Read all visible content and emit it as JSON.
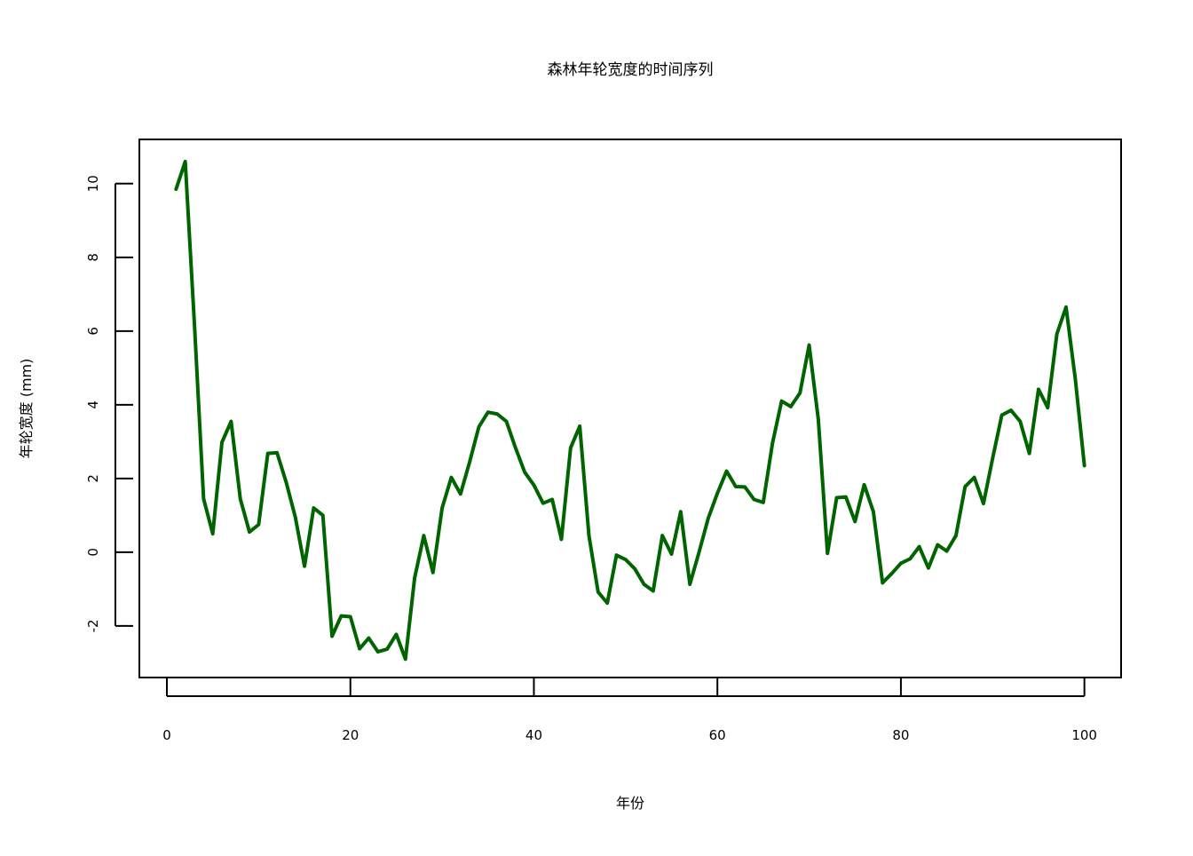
{
  "colors": {
    "line": "#006400",
    "axis": "#000000",
    "background": "#ffffff"
  },
  "chart_data": {
    "type": "line",
    "title": "森林年轮宽度的时间序列",
    "xlabel": "年份",
    "ylabel": "年轮宽度 (mm)",
    "xlim": [
      -3,
      104
    ],
    "ylim": [
      -3.4,
      11.2
    ],
    "xticks": [
      0,
      20,
      40,
      60,
      80,
      100
    ],
    "yticks": [
      -2,
      0,
      2,
      4,
      6,
      8,
      10
    ],
    "grid": false,
    "legend": "none",
    "x": [
      1,
      2,
      3,
      4,
      5,
      6,
      7,
      8,
      9,
      10,
      11,
      12,
      13,
      14,
      15,
      16,
      17,
      18,
      19,
      20,
      21,
      22,
      23,
      24,
      25,
      26,
      27,
      28,
      29,
      30,
      31,
      32,
      33,
      34,
      35,
      36,
      37,
      38,
      39,
      40,
      41,
      42,
      43,
      44,
      45,
      46,
      47,
      48,
      49,
      50,
      51,
      52,
      53,
      54,
      55,
      56,
      57,
      58,
      59,
      60,
      61,
      62,
      63,
      64,
      65,
      66,
      67,
      68,
      69,
      70,
      71,
      72,
      73,
      74,
      75,
      76,
      77,
      78,
      79,
      80,
      81,
      82,
      83,
      84,
      85,
      86,
      87,
      88,
      89,
      90,
      91,
      92,
      93,
      94,
      95,
      96,
      97,
      98,
      99,
      100
    ],
    "series": [
      {
        "values": [
          9.85,
          10.6,
          6.2,
          1.45,
          0.5,
          2.98,
          3.55,
          1.45,
          0.55,
          0.75,
          2.68,
          2.7,
          1.9,
          0.95,
          -0.38,
          1.2,
          1.0,
          -2.28,
          -1.73,
          -1.75,
          -2.62,
          -2.33,
          -2.7,
          -2.63,
          -2.23,
          -2.9,
          -0.7,
          0.45,
          -0.55,
          1.2,
          2.03,
          1.58,
          2.45,
          3.4,
          3.8,
          3.75,
          3.55,
          2.83,
          2.17,
          1.82,
          1.33,
          1.43,
          0.35,
          2.83,
          3.42,
          0.45,
          -1.08,
          -1.38,
          -0.08,
          -0.2,
          -0.45,
          -0.87,
          -1.05,
          0.45,
          -0.05,
          1.1,
          -0.87,
          0.0,
          0.92,
          1.6,
          2.2,
          1.78,
          1.77,
          1.43,
          1.35,
          2.95,
          4.1,
          3.95,
          4.32,
          5.62,
          3.6,
          -0.03,
          1.48,
          1.5,
          0.83,
          1.83,
          1.1,
          -0.83,
          -0.58,
          -0.3,
          -0.18,
          0.15,
          -0.43,
          0.2,
          0.03,
          0.45,
          1.78,
          2.03,
          1.32,
          2.55,
          3.72,
          3.85,
          3.55,
          2.68,
          4.42,
          3.92,
          5.92,
          6.65,
          4.72,
          2.35
        ]
      }
    ]
  }
}
